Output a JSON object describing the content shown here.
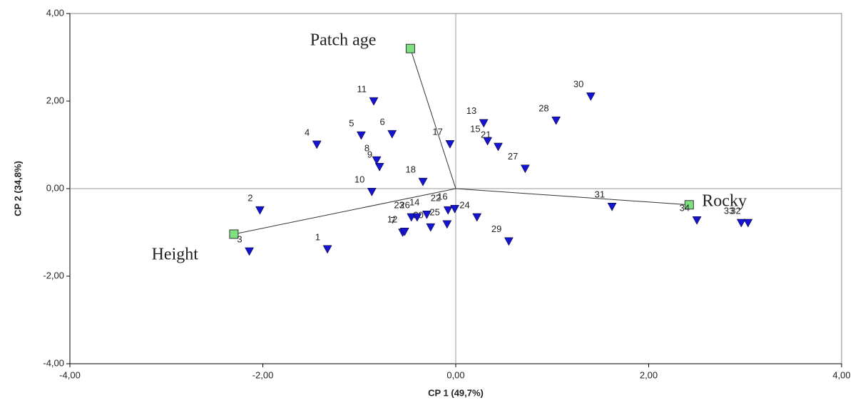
{
  "chart_data": {
    "type": "scatter",
    "x_label": "CP 1 (49,7%)",
    "y_label": "CP 2 (34,8%)",
    "xlim": [
      -4,
      4
    ],
    "ylim": [
      -4,
      4
    ],
    "xticks": [
      {
        "value": -4,
        "label": "-4,00"
      },
      {
        "value": -2,
        "label": "-2,00"
      },
      {
        "value": 0,
        "label": "0,00"
      },
      {
        "value": 2,
        "label": "2,00"
      },
      {
        "value": 4,
        "label": "4,00"
      }
    ],
    "yticks": [
      {
        "value": -4,
        "label": "-4,00"
      },
      {
        "value": -2,
        "label": "-2,00"
      },
      {
        "value": 0,
        "label": "0,00"
      },
      {
        "value": 2,
        "label": "2,00"
      },
      {
        "value": 4,
        "label": "4,00"
      }
    ],
    "point_color": "#1414d2",
    "vector_color": "#7fe07f",
    "labels": [
      "1",
      "2",
      "3",
      "4",
      "5",
      "6",
      "7",
      "8",
      "9",
      "10",
      "11",
      "12",
      "13",
      "14",
      "15",
      "16",
      "17",
      "18",
      "20",
      "21",
      "22",
      "23",
      "24",
      "25",
      "26",
      "27",
      "28",
      "29",
      "30",
      "31",
      "32",
      "33",
      "34"
    ],
    "x": [
      -1.33,
      -2.03,
      -2.14,
      -1.44,
      -0.98,
      -0.66,
      -0.55,
      -0.82,
      -0.79,
      -0.87,
      -0.85,
      -0.53,
      0.29,
      -0.3,
      0.33,
      -0.01,
      -0.06,
      -0.34,
      -0.26,
      0.44,
      -0.08,
      -0.46,
      0.22,
      -0.09,
      -0.4,
      0.72,
      1.04,
      0.55,
      1.4,
      1.62,
      3.03,
      2.96,
      2.5
    ],
    "y": [
      -1.38,
      -0.49,
      -1.43,
      1.01,
      1.22,
      1.25,
      -1.0,
      0.65,
      0.5,
      -0.07,
      2.0,
      -0.98,
      1.5,
      -0.59,
      1.09,
      -0.46,
      1.02,
      0.16,
      -0.88,
      0.96,
      -0.49,
      -0.65,
      -0.65,
      -0.81,
      -0.65,
      0.46,
      1.56,
      -1.2,
      2.11,
      -0.41,
      -0.78,
      -0.78,
      -0.72
    ],
    "vectors": [
      {
        "name": "Patch age",
        "x": -0.47,
        "y": 3.2
      },
      {
        "name": "Rocky",
        "x": 2.42,
        "y": -0.37
      },
      {
        "name": "Height",
        "x": -2.3,
        "y": -1.04
      }
    ]
  }
}
